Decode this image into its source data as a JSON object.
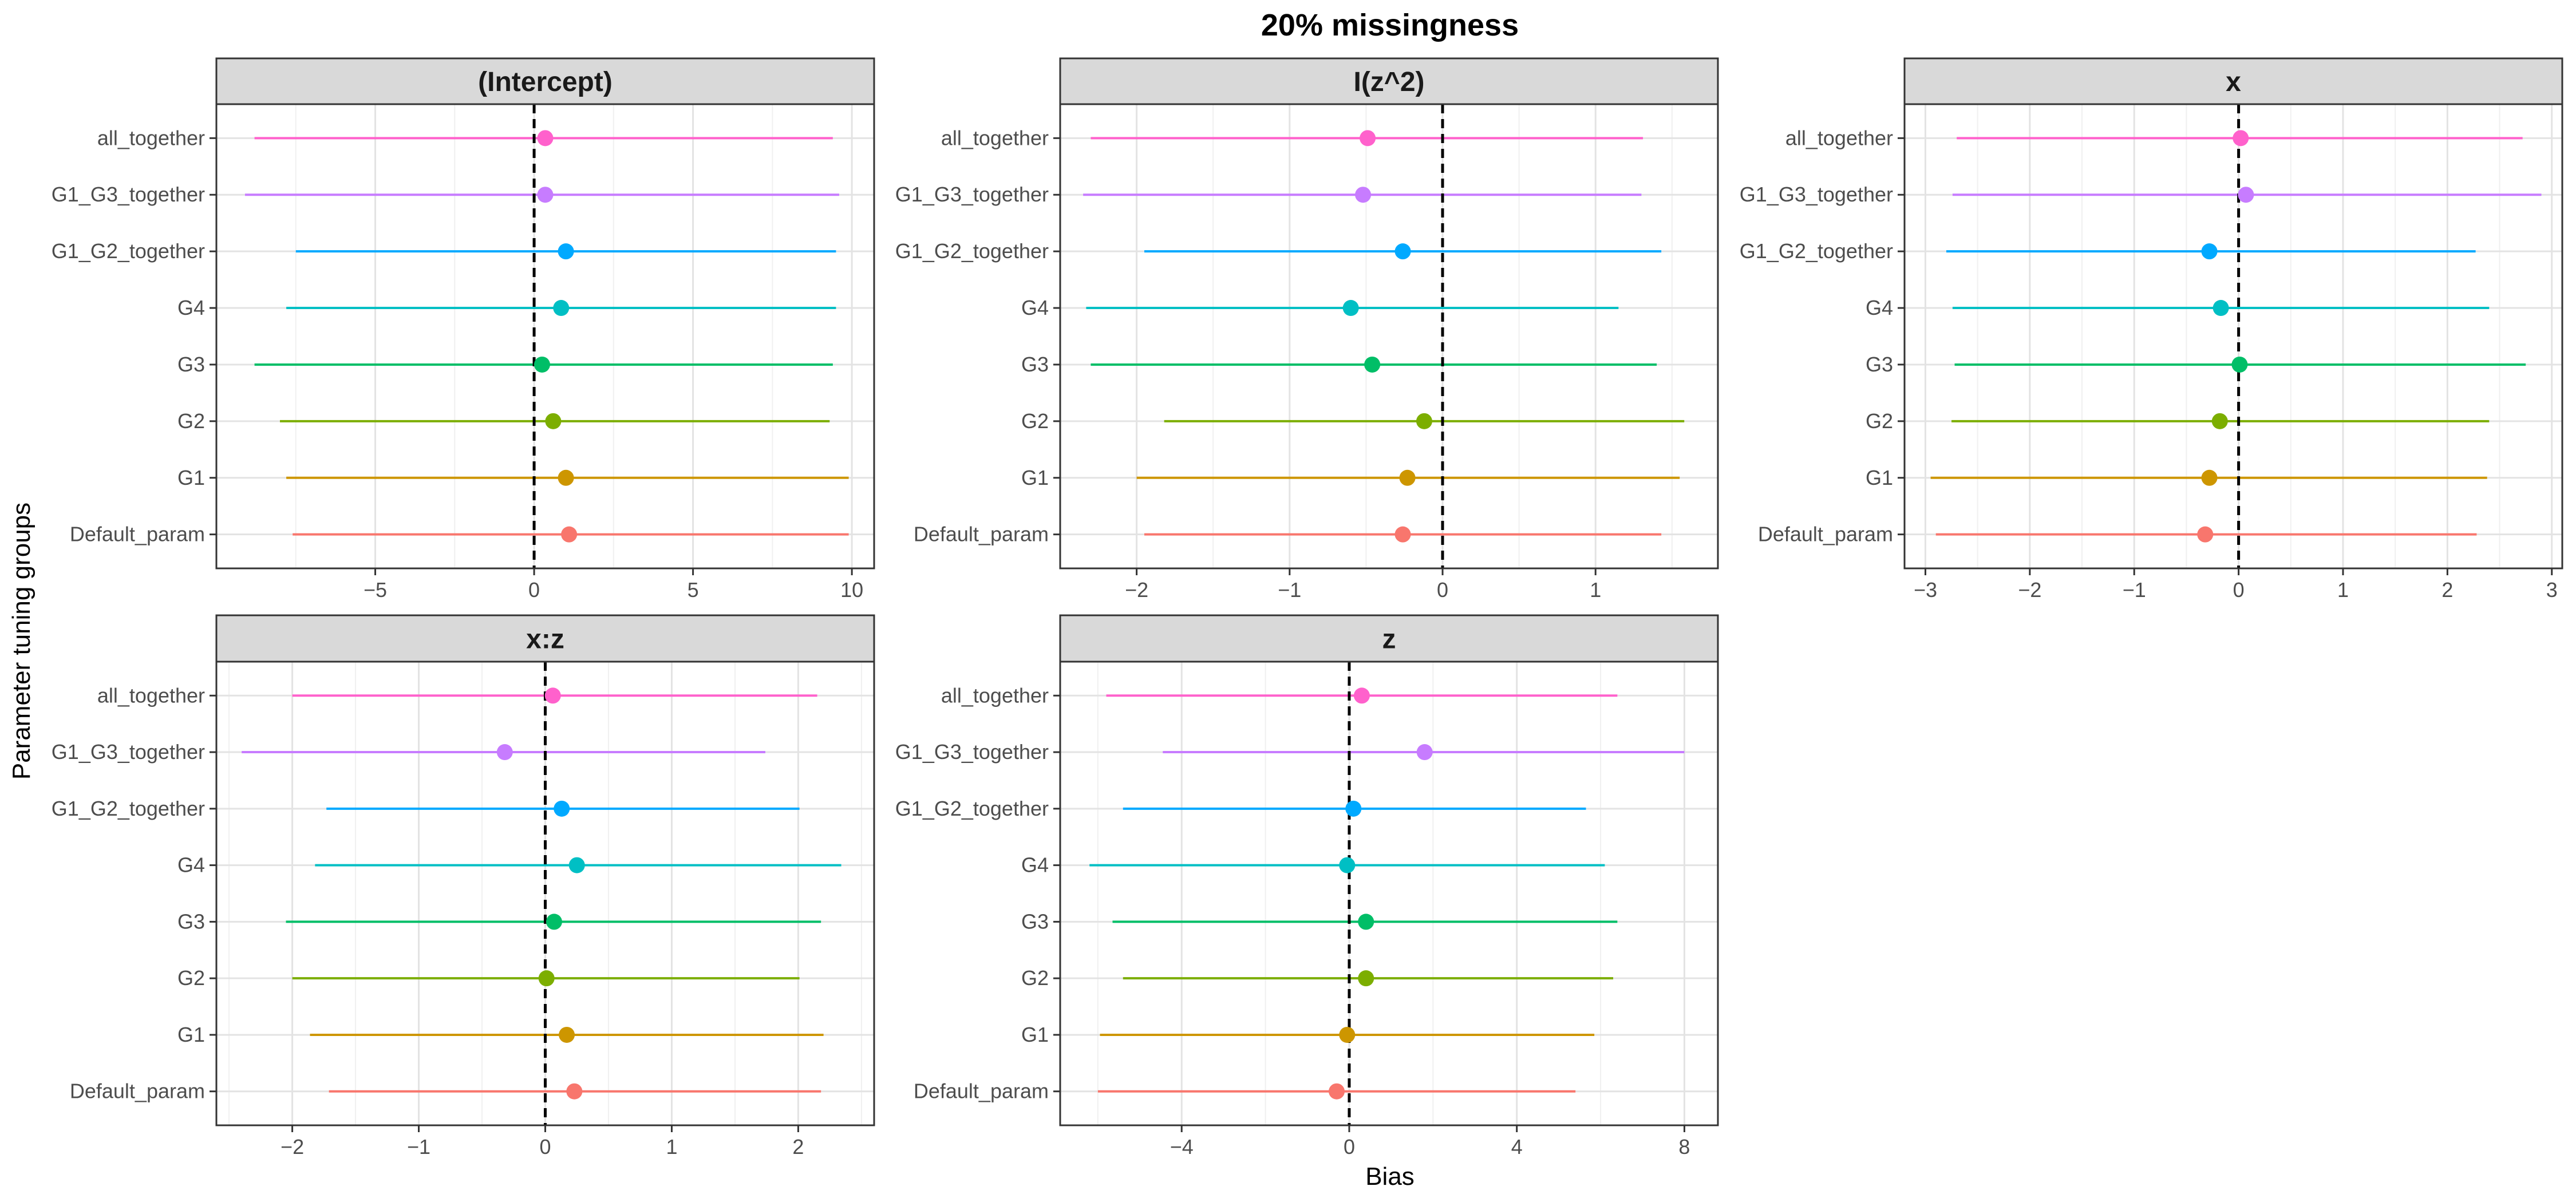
{
  "chart_data": {
    "type": "scatter",
    "title": "20% missingness",
    "xlabel": "Bias",
    "ylabel": "Parameter tuning groups",
    "grid": true,
    "legend": "none",
    "categories": [
      "Default_param",
      "G1",
      "G2",
      "G3",
      "G4",
      "G1_G2_together",
      "G1_G3_together",
      "all_together"
    ],
    "colors": {
      "Default_param": "#F8766D",
      "G1": "#CD9600",
      "G2": "#7CAE00",
      "G3": "#00BE67",
      "G4": "#00BFC4",
      "G1_G2_together": "#00A9FF",
      "G1_G3_together": "#C77CFF",
      "all_together": "#FF61CC"
    },
    "reference_line": 0,
    "panels": [
      {
        "name": "(Intercept)",
        "xlim": [
          -10,
          10.7
        ],
        "ticks": [
          -5,
          0,
          5,
          10
        ],
        "tick_labels": [
          "−5",
          "0",
          "5",
          "10"
        ],
        "estimates": [
          1.1,
          1.0,
          0.6,
          0.25,
          0.85,
          1.0,
          0.35,
          0.35
        ],
        "lower": [
          -7.6,
          -7.8,
          -8.0,
          -8.8,
          -7.8,
          -7.5,
          -9.1,
          -8.8
        ],
        "upper": [
          9.9,
          9.9,
          9.3,
          9.4,
          9.5,
          9.5,
          9.6,
          9.4
        ]
      },
      {
        "name": "I(z^2)",
        "xlim": [
          -2.5,
          1.8
        ],
        "ticks": [
          -2,
          -1,
          0,
          1
        ],
        "tick_labels": [
          "−2",
          "−1",
          "0",
          "1"
        ],
        "estimates": [
          -0.26,
          -0.23,
          -0.12,
          -0.46,
          -0.6,
          -0.26,
          -0.52,
          -0.49
        ],
        "lower": [
          -1.95,
          -2.0,
          -1.82,
          -2.3,
          -2.33,
          -1.95,
          -2.35,
          -2.3
        ],
        "upper": [
          1.43,
          1.55,
          1.58,
          1.4,
          1.15,
          1.43,
          1.3,
          1.31
        ]
      },
      {
        "name": "x",
        "xlim": [
          -3.2,
          3.1
        ],
        "ticks": [
          -3,
          -2,
          -1,
          0,
          1,
          2,
          3
        ],
        "tick_labels": [
          "−3",
          "−2",
          "−1",
          "0",
          "1",
          "2",
          "3"
        ],
        "estimates": [
          -0.32,
          -0.28,
          -0.18,
          0.01,
          -0.17,
          -0.28,
          0.07,
          0.02
        ],
        "lower": [
          -2.9,
          -2.95,
          -2.75,
          -2.72,
          -2.74,
          -2.8,
          -2.74,
          -2.7
        ],
        "upper": [
          2.28,
          2.38,
          2.4,
          2.75,
          2.4,
          2.27,
          2.9,
          2.72
        ]
      },
      {
        "name": "x:z",
        "xlim": [
          -2.6,
          2.6
        ],
        "ticks": [
          -2,
          -1,
          0,
          1,
          2
        ],
        "tick_labels": [
          "−2",
          "−1",
          "0",
          "1",
          "2"
        ],
        "estimates": [
          0.23,
          0.17,
          0.01,
          0.07,
          0.25,
          0.13,
          -0.32,
          0.06
        ],
        "lower": [
          -1.71,
          -1.86,
          -2.0,
          -2.05,
          -1.82,
          -1.73,
          -2.4,
          -2.0
        ],
        "upper": [
          2.18,
          2.2,
          2.01,
          2.18,
          2.34,
          2.01,
          1.74,
          2.15
        ]
      },
      {
        "name": "z",
        "xlim": [
          -6.9,
          8.8
        ],
        "ticks": [
          -4,
          0,
          4,
          8
        ],
        "tick_labels": [
          "−4",
          "0",
          "4",
          "8"
        ],
        "estimates": [
          -0.3,
          -0.05,
          0.4,
          0.4,
          -0.05,
          0.1,
          1.8,
          0.3
        ],
        "lower": [
          -6.0,
          -5.95,
          -5.4,
          -5.65,
          -6.2,
          -5.4,
          -4.45,
          -5.8
        ],
        "upper": [
          5.4,
          5.85,
          6.3,
          6.4,
          6.1,
          5.65,
          8.0,
          6.4
        ]
      }
    ]
  }
}
